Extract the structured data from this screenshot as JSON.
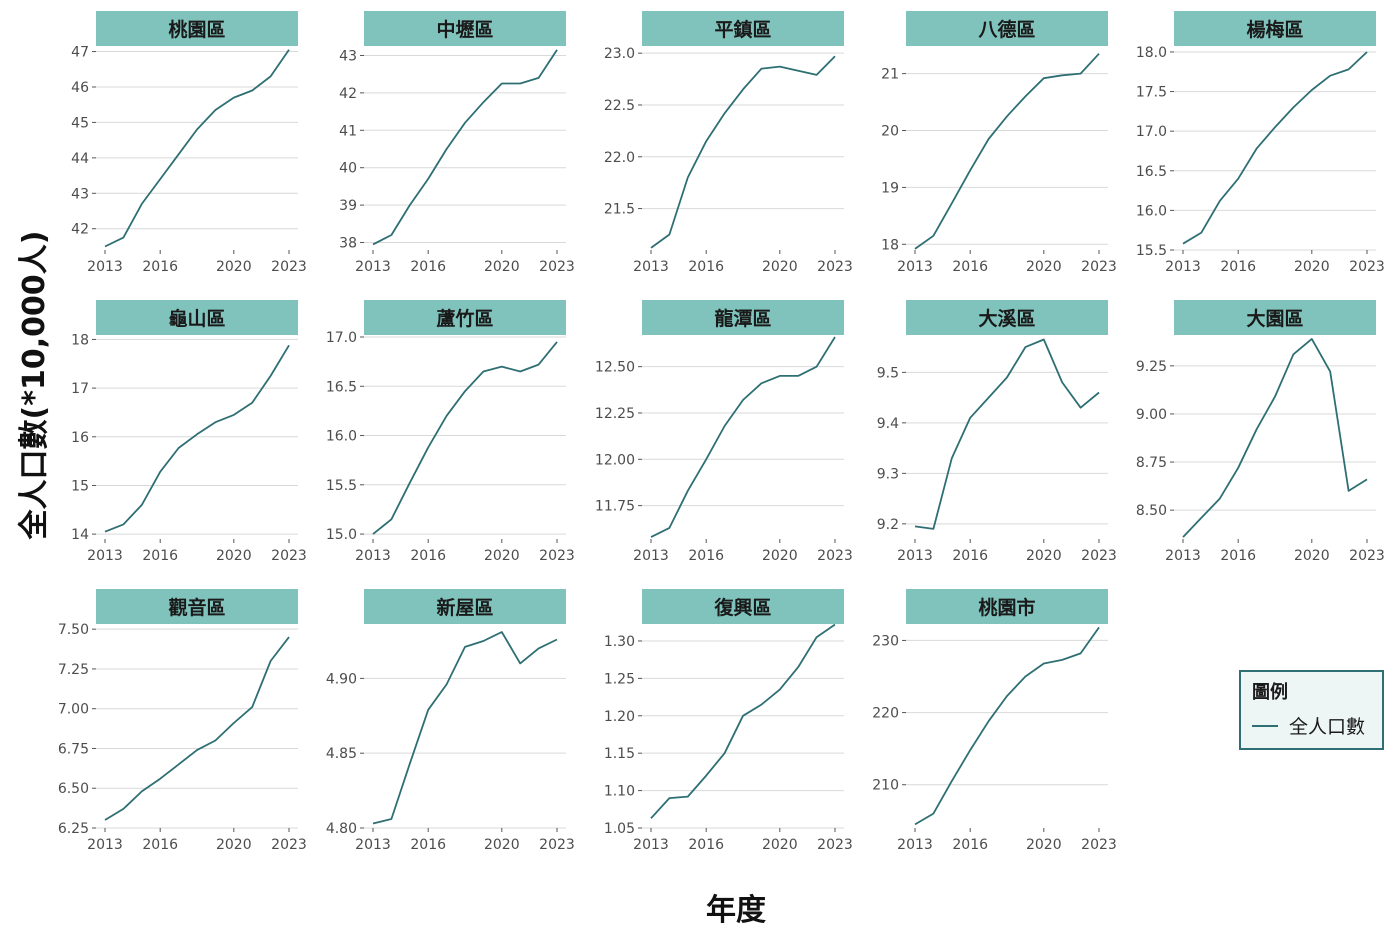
{
  "colors": {
    "strip_fill": "#7fc3bc",
    "line": "#2e6f73",
    "grid": "#d9d9d9",
    "legend_border": "#2f6f73",
    "legend_bg": "#eef5f5",
    "tick": "#4d4d4d"
  },
  "chart_data": {
    "type": "line",
    "layout": "facet-grid",
    "xlabel": "年度",
    "ylabel": "全人口數(*10,000人)",
    "legend": {
      "title": "圖例",
      "entries": [
        "全人口數"
      ],
      "placement": "bottom-right"
    },
    "x_ticks": [
      2013,
      2016,
      2020,
      2023
    ],
    "x_range": [
      2013,
      2023
    ],
    "x": [
      2013,
      2014,
      2015,
      2016,
      2017,
      2018,
      2019,
      2020,
      2021,
      2022,
      2023
    ],
    "grid": true,
    "panels": [
      {
        "title": "桃園區",
        "ylim": [
          41.4,
          47.1
        ],
        "yticks": [
          42,
          43,
          44,
          45,
          46,
          47
        ],
        "tick_labels": [
          "42",
          "43",
          "44",
          "45",
          "46",
          "47"
        ],
        "values": [
          41.5,
          41.75,
          42.7,
          43.4,
          44.1,
          44.8,
          45.35,
          45.7,
          45.9,
          46.3,
          47.05
        ]
      },
      {
        "title": "中壢區",
        "ylim": [
          37.8,
          43.2
        ],
        "yticks": [
          38,
          39,
          40,
          41,
          42,
          43
        ],
        "tick_labels": [
          "38",
          "39",
          "40",
          "41",
          "42",
          "43"
        ],
        "values": [
          37.95,
          38.2,
          39.0,
          39.7,
          40.5,
          41.2,
          41.75,
          42.25,
          42.25,
          42.4,
          43.15
        ]
      },
      {
        "title": "平鎮區",
        "ylim": [
          21.1,
          23.05
        ],
        "yticks": [
          21.5,
          22.0,
          22.5,
          23.0
        ],
        "tick_labels": [
          "21.5",
          "22.0",
          "22.5",
          "23.0"
        ],
        "values": [
          21.12,
          21.25,
          21.8,
          22.15,
          22.42,
          22.65,
          22.85,
          22.87,
          22.83,
          22.79,
          22.97
        ]
      },
      {
        "title": "八德區",
        "ylim": [
          17.9,
          21.45
        ],
        "yticks": [
          18,
          19,
          20,
          21
        ],
        "tick_labels": [
          "18",
          "19",
          "20",
          "21"
        ],
        "values": [
          17.92,
          18.15,
          18.72,
          19.3,
          19.85,
          20.25,
          20.6,
          20.92,
          20.97,
          21.0,
          21.35
        ]
      },
      {
        "title": "楊梅區",
        "ylim": [
          15.5,
          18.05
        ],
        "yticks": [
          15.5,
          16.0,
          16.5,
          17.0,
          17.5,
          18.0
        ],
        "tick_labels": [
          "15.5",
          "16.0",
          "16.5",
          "17.0",
          "17.5",
          "18.0"
        ],
        "values": [
          15.58,
          15.72,
          16.12,
          16.4,
          16.78,
          17.05,
          17.3,
          17.52,
          17.7,
          17.78,
          18.0
        ]
      },
      {
        "title": "龜山區",
        "ylim": [
          13.9,
          18.05
        ],
        "yticks": [
          14,
          15,
          16,
          17,
          18
        ],
        "tick_labels": [
          "14",
          "15",
          "16",
          "17",
          "18"
        ],
        "values": [
          14.05,
          14.2,
          14.6,
          15.28,
          15.77,
          16.05,
          16.3,
          16.45,
          16.7,
          17.25,
          17.88
        ]
      },
      {
        "title": "蘆竹區",
        "ylim": [
          14.95,
          17.0
        ],
        "yticks": [
          15.0,
          15.5,
          16.0,
          16.5,
          17.0
        ],
        "tick_labels": [
          "15.0",
          "15.5",
          "16.0",
          "16.5",
          "17.0"
        ],
        "values": [
          15.0,
          15.15,
          15.52,
          15.88,
          16.2,
          16.45,
          16.65,
          16.7,
          16.65,
          16.72,
          16.95
        ]
      },
      {
        "title": "龍潭區",
        "ylim": [
          11.57,
          12.66
        ],
        "yticks": [
          11.75,
          12.0,
          12.25,
          12.5
        ],
        "tick_labels": [
          "11.75",
          "12.00",
          "12.25",
          "12.50"
        ],
        "values": [
          11.58,
          11.63,
          11.83,
          12.0,
          12.18,
          12.32,
          12.41,
          12.45,
          12.45,
          12.5,
          12.66
        ]
      },
      {
        "title": "大溪區",
        "ylim": [
          9.17,
          9.57
        ],
        "yticks": [
          9.2,
          9.3,
          9.4,
          9.5
        ],
        "tick_labels": [
          "9.2",
          "9.3",
          "9.4",
          "9.5"
        ],
        "values": [
          9.195,
          9.19,
          9.33,
          9.41,
          9.45,
          9.49,
          9.55,
          9.565,
          9.48,
          9.43,
          9.46
        ]
      },
      {
        "title": "大園區",
        "ylim": [
          8.35,
          9.4
        ],
        "yticks": [
          8.5,
          8.75,
          9.0,
          9.25
        ],
        "tick_labels": [
          "8.50",
          "8.75",
          "9.00",
          "9.25"
        ],
        "values": [
          8.36,
          8.46,
          8.56,
          8.72,
          8.92,
          9.09,
          9.31,
          9.39,
          9.22,
          8.6,
          8.66
        ]
      },
      {
        "title": "觀音區",
        "ylim": [
          6.25,
          7.52
        ],
        "yticks": [
          6.25,
          6.5,
          6.75,
          7.0,
          7.25,
          7.5
        ],
        "tick_labels": [
          "6.25",
          "6.50",
          "6.75",
          "7.00",
          "7.25",
          "7.50"
        ],
        "values": [
          6.3,
          6.37,
          6.48,
          6.56,
          6.65,
          6.74,
          6.8,
          6.91,
          7.01,
          7.3,
          7.45
        ]
      },
      {
        "title": "新屋區",
        "ylim": [
          4.8,
          4.935
        ],
        "yticks": [
          4.8,
          4.85,
          4.9
        ],
        "tick_labels": [
          "4.80",
          "4.85",
          "4.90"
        ],
        "values": [
          4.803,
          4.806,
          4.843,
          4.879,
          4.896,
          4.921,
          4.925,
          4.931,
          4.91,
          4.92,
          4.926
        ]
      },
      {
        "title": "復興區",
        "ylim": [
          1.05,
          1.32
        ],
        "yticks": [
          1.05,
          1.1,
          1.15,
          1.2,
          1.25,
          1.3
        ],
        "tick_labels": [
          "1.05",
          "1.10",
          "1.15",
          "1.20",
          "1.25",
          "1.30"
        ],
        "values": [
          1.063,
          1.09,
          1.092,
          1.12,
          1.15,
          1.2,
          1.215,
          1.235,
          1.265,
          1.305,
          1.322
        ]
      },
      {
        "title": "桃園市",
        "ylim": [
          204,
          232
        ],
        "yticks": [
          210,
          220,
          230
        ],
        "tick_labels": [
          "210",
          "220",
          "230"
        ],
        "values": [
          204.5,
          206.0,
          210.5,
          214.8,
          218.8,
          222.3,
          225.0,
          226.8,
          227.3,
          228.2,
          231.8
        ]
      }
    ]
  }
}
